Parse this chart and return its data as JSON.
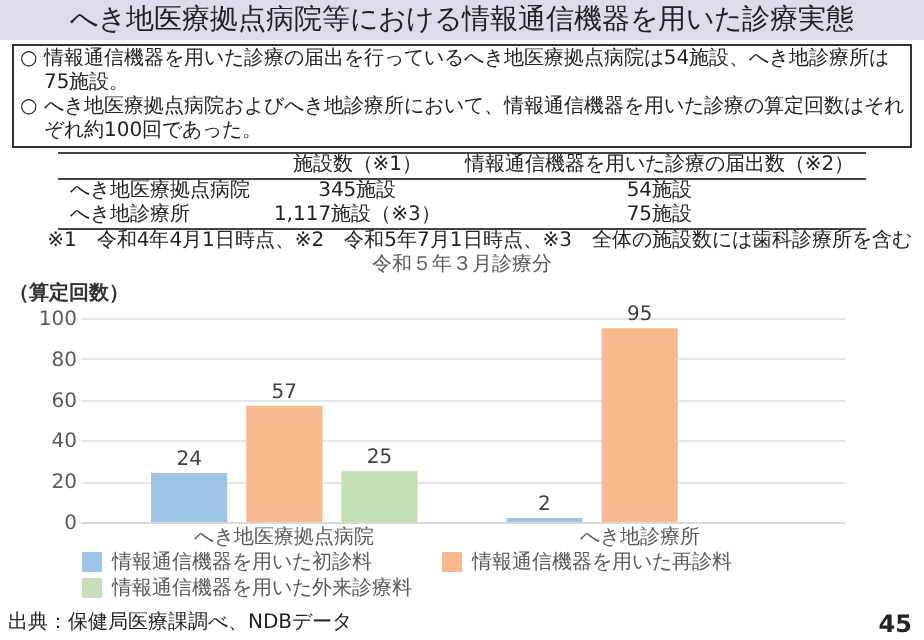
{
  "chart_data": {
    "type": "bar",
    "title": "へき地医療拠点病院等における情報通信機器を用いた診療実態",
    "subtitle": "令和５年３月診療分",
    "ylabel": "（算定回数）",
    "categories": [
      "へき地医療拠点病院",
      "へき地診療所"
    ],
    "series": [
      {
        "name": "情報通信機器を用いた初診料",
        "color": "#9dc3e6",
        "values": [
          24,
          2
        ]
      },
      {
        "name": "情報通信機器を用いた再診料",
        "color": "#f8b98f",
        "values": [
          57,
          95
        ]
      },
      {
        "name": "情報通信機器を用いた外来診療料",
        "color": "#c5e0b4",
        "values": [
          25,
          null
        ]
      }
    ],
    "ylim": [
      0,
      100
    ],
    "yticks": [
      0,
      20,
      40,
      60,
      80,
      100
    ],
    "grid": "y",
    "legend": "bottom",
    "data_labels": true,
    "annotations": [
      "○ 情報通信機器を用いた診療の届出を行っているへき地医療拠点病院は54施設、へき地診療所は75施設。",
      "○ へき地医療拠点病院およびへき地診療所において、情報通信機器を用いた診療の算定回数はそれぞれ約100回であった。",
      "施設数（※1）",
      "情報通信機器を用いた診療の届出数（※2）",
      "へき地医療拠点病院",
      "345施設",
      "54施設",
      "へき地診療所",
      "1,117施設（※3）",
      "75施設",
      "※1　令和4年4月1日時点、※2　令和5年7月1日時点、※3　全体の施設数には歯科診療所を含む",
      "出典：保健局医療課調べ、NDBデータ",
      "45"
    ]
  }
}
